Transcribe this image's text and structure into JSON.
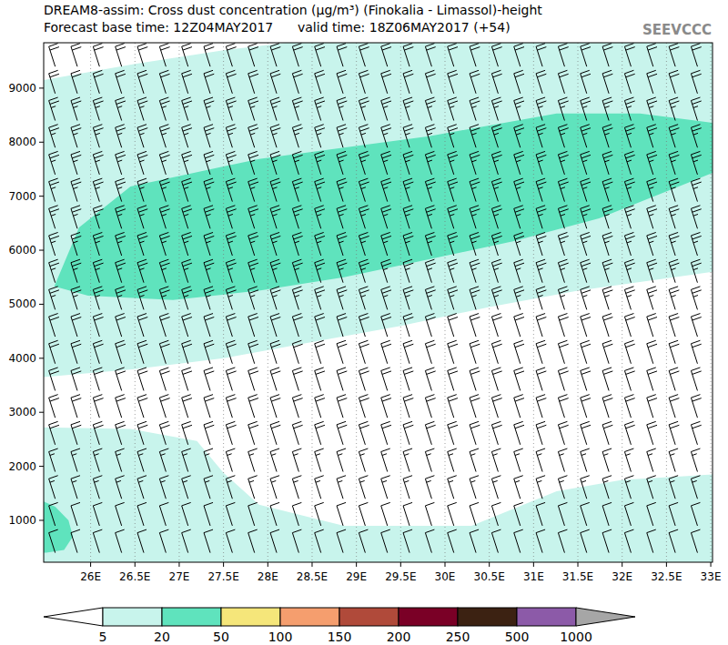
{
  "chart_data": {
    "type": "cross_section",
    "title": "DREAM8-assim: Cross dust concentration (μg/m³) (Finokalia - Limassol)-height",
    "subtitle": "Forecast base time: 12Z04MAY2017      valid time: 18Z06MAY2017 (+54)",
    "logo": "SEEVCCC",
    "xlim": [
      25.47,
      33.02
    ],
    "ylim": [
      225,
      9840
    ],
    "xticks": [
      {
        "value": 26,
        "label": "26E"
      },
      {
        "value": 26.5,
        "label": "26.5E"
      },
      {
        "value": 27,
        "label": "27E"
      },
      {
        "value": 27.5,
        "label": "27.5E"
      },
      {
        "value": 28,
        "label": "28E"
      },
      {
        "value": 28.5,
        "label": "28.5E"
      },
      {
        "value": 29,
        "label": "29E"
      },
      {
        "value": 29.5,
        "label": "29.5E"
      },
      {
        "value": 30,
        "label": "30E"
      },
      {
        "value": 30.5,
        "label": "30.5E"
      },
      {
        "value": 31,
        "label": "31E"
      },
      {
        "value": 31.5,
        "label": "31.5E"
      },
      {
        "value": 32,
        "label": "32E"
      },
      {
        "value": 32.5,
        "label": "32.5E"
      },
      {
        "value": 33,
        "label": "33E"
      }
    ],
    "yticks": [
      1000,
      2000,
      3000,
      4000,
      5000,
      6000,
      7000,
      8000,
      9000
    ],
    "grid": true,
    "regions": [
      {
        "range": [
          5,
          20
        ],
        "polygon": [
          [
            25.47,
            225
          ],
          [
            33.02,
            225
          ],
          [
            33.02,
            9840
          ],
          [
            25.47,
            9840
          ]
        ]
      },
      {
        "range": [
          0,
          5
        ],
        "polygon": [
          [
            25.47,
            9840
          ],
          [
            28.2,
            9840
          ],
          [
            27.5,
            9700
          ],
          [
            26.5,
            9450
          ],
          [
            25.47,
            9150
          ]
        ]
      },
      {
        "range": [
          0,
          5
        ],
        "polygon": [
          [
            25.47,
            3650
          ],
          [
            26.5,
            3800
          ],
          [
            27.5,
            4000
          ],
          [
            28.5,
            4300
          ],
          [
            29.5,
            4600
          ],
          [
            30.5,
            4950
          ],
          [
            31.5,
            5250
          ],
          [
            33.02,
            5600
          ],
          [
            33.02,
            1850
          ],
          [
            32,
            1750
          ],
          [
            31.26,
            1540
          ],
          [
            30.3,
            900
          ],
          [
            28.86,
            900
          ],
          [
            27.9,
            1290
          ],
          [
            27.5,
            1880
          ],
          [
            27.2,
            2470
          ],
          [
            26.45,
            2690
          ],
          [
            25.47,
            2720
          ]
        ]
      },
      {
        "range": [
          20,
          50
        ],
        "polygon": [
          [
            25.47,
            1350
          ],
          [
            25.6,
            1250
          ],
          [
            25.75,
            1000
          ],
          [
            25.8,
            700
          ],
          [
            25.7,
            450
          ],
          [
            25.5,
            400
          ],
          [
            25.47,
            400
          ]
        ]
      },
      {
        "range": [
          20,
          50
        ],
        "polygon": [
          [
            25.59,
            5330
          ],
          [
            25.87,
            6420
          ],
          [
            26.45,
            7180
          ],
          [
            27.9,
            7690
          ],
          [
            29.82,
            8110
          ],
          [
            31.26,
            8530
          ],
          [
            32.2,
            8530
          ],
          [
            33.02,
            8360
          ],
          [
            33.02,
            7430
          ],
          [
            31.74,
            6590
          ],
          [
            30.78,
            6170
          ],
          [
            29.82,
            5830
          ],
          [
            28.86,
            5500
          ],
          [
            27.9,
            5250
          ],
          [
            26.93,
            5080
          ],
          [
            25.97,
            5160
          ]
        ]
      }
    ],
    "wind_barbs": {
      "x": [
        25.6,
        25.85,
        26.1,
        26.35,
        26.6,
        26.85,
        27.1,
        27.35,
        27.6,
        27.85,
        28.1,
        28.35,
        28.6,
        28.85,
        29.1,
        29.35,
        29.6,
        29.85,
        30.1,
        30.35,
        30.6,
        30.85,
        31.1,
        31.35,
        31.6,
        31.85,
        32.1,
        32.35,
        32.6,
        32.85
      ],
      "heights": [
        400,
        900,
        1400,
        1900,
        2400,
        2900,
        3400,
        3900,
        4400,
        4900,
        5400,
        5900,
        6400,
        6900,
        7400,
        7900,
        8400,
        8900,
        9400
      ],
      "speed": [
        10,
        10,
        15,
        15,
        20,
        20,
        20,
        20,
        20,
        25,
        25,
        25,
        25,
        25,
        25,
        25,
        25,
        20,
        20
      ]
    },
    "colorbar": {
      "levels": [
        5,
        20,
        50,
        100,
        150,
        200,
        250,
        500,
        1000
      ],
      "colors": [
        "#ffffff",
        "#c8f4ec",
        "#5fe3bd",
        "#f5e67a",
        "#f59e6e",
        "#b04a3a",
        "#7a0026",
        "#3c2212",
        "#8c5aa8",
        "#a6a6a6"
      ]
    }
  }
}
